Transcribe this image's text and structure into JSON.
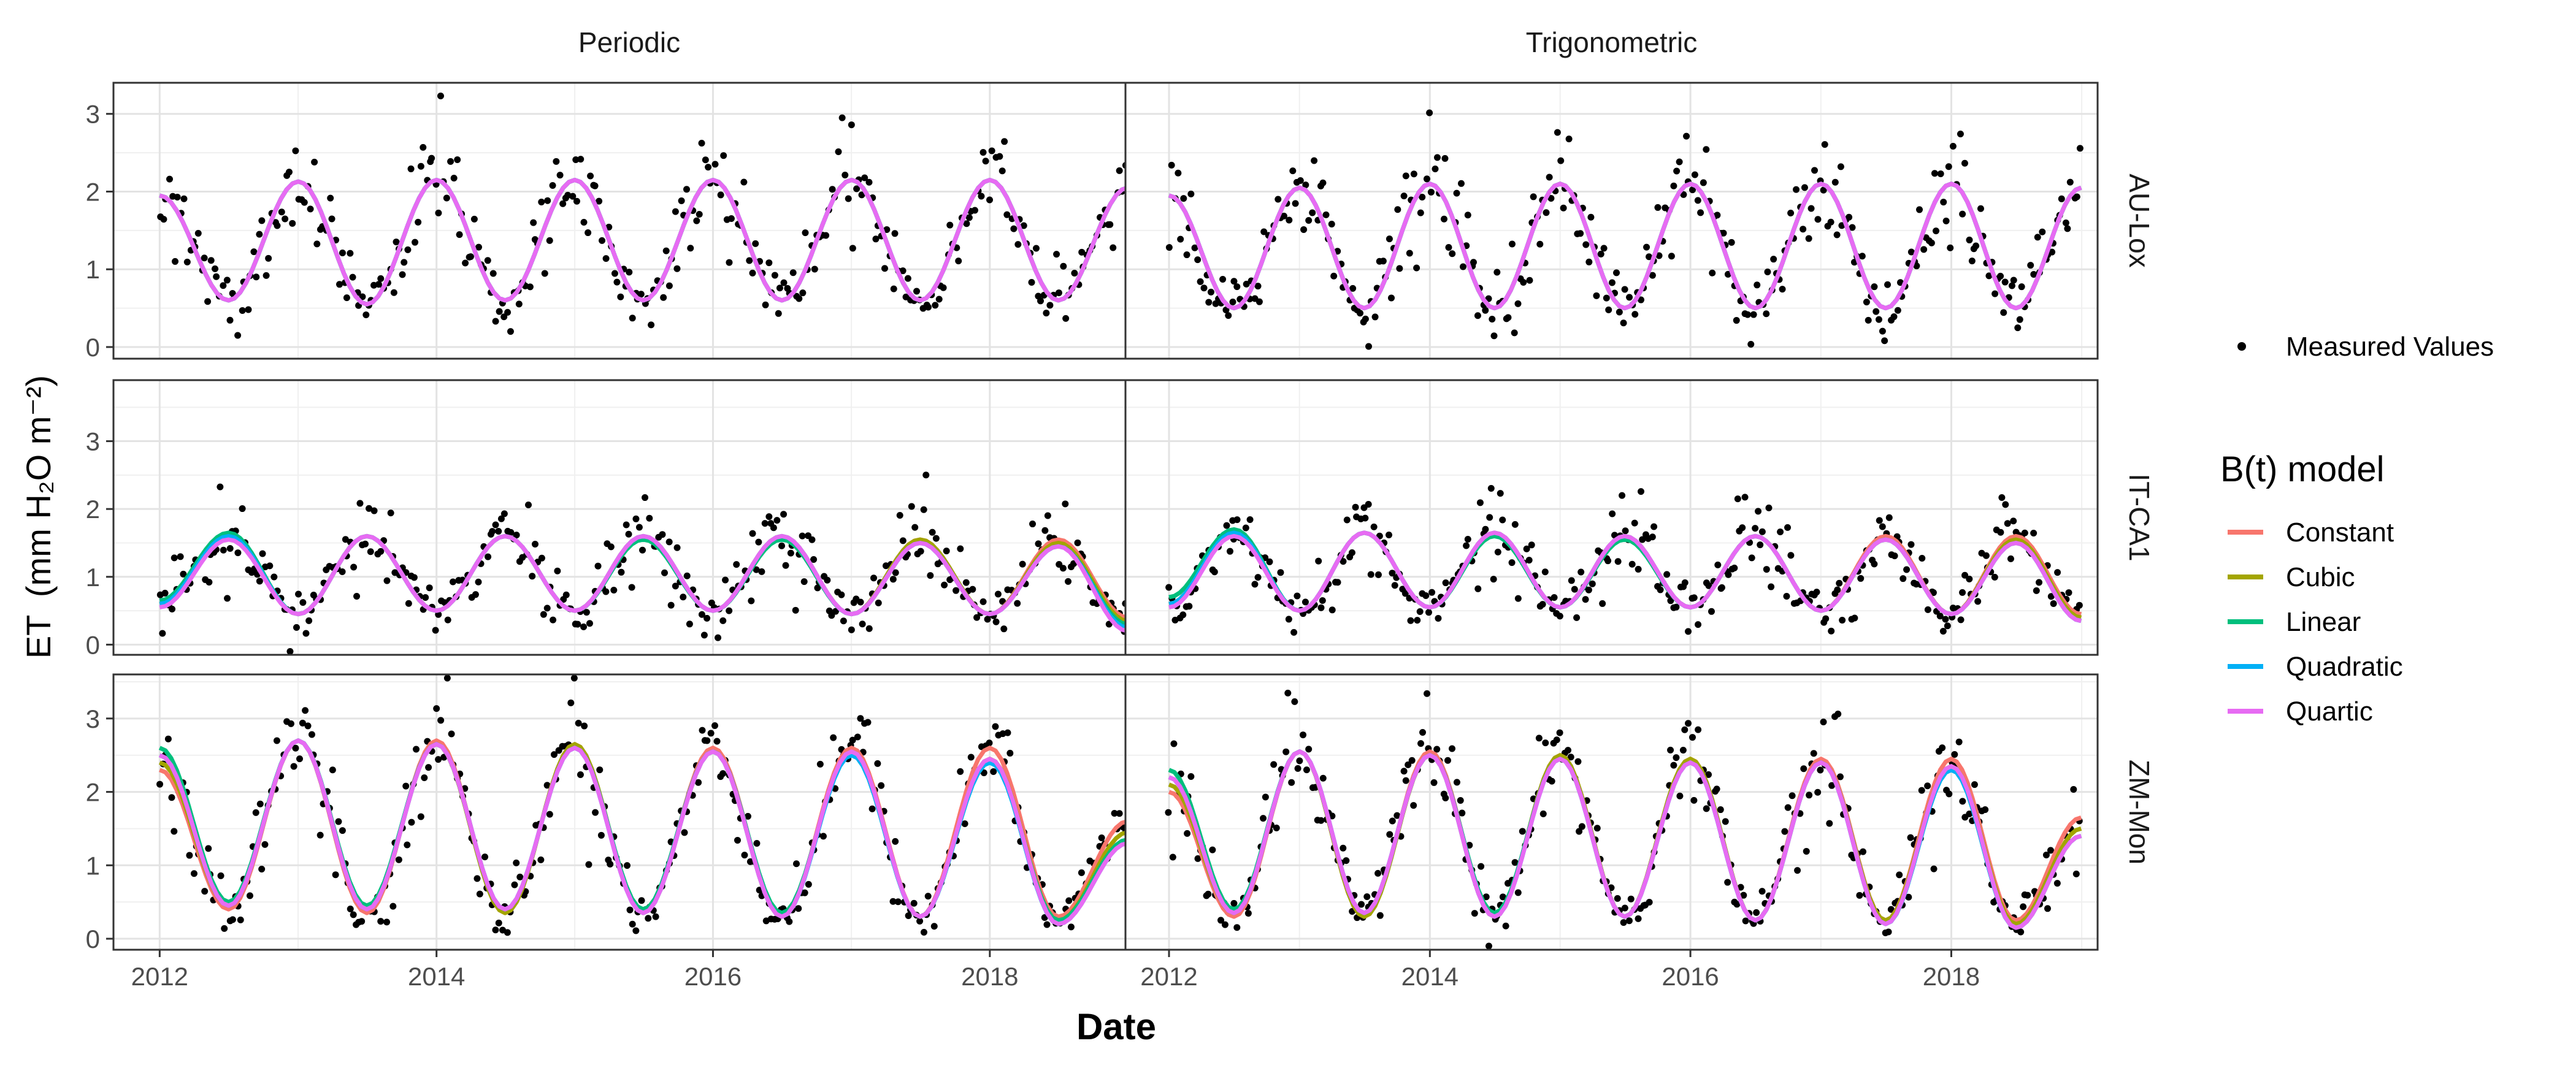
{
  "figure": {
    "ylabel_prefix": "ET",
    "ylabel_unit": "(mm  H₂O  m⁻²)",
    "xlabel": "Date"
  },
  "legend": {
    "points_label": "Measured Values",
    "title": "B(t) model",
    "items": [
      {
        "label": "Constant",
        "color": "#F8766D"
      },
      {
        "label": "Cubic",
        "color": "#A3A500"
      },
      {
        "label": "Linear",
        "color": "#00BF7D"
      },
      {
        "label": "Quadratic",
        "color": "#00B0F6"
      },
      {
        "label": "Quartic",
        "color": "#E76BF3"
      }
    ]
  },
  "chart_data": {
    "type": "line",
    "facets": {
      "columns": [
        "Periodic",
        "Trigonometric"
      ],
      "rows": [
        "AU-Lox",
        "IT-CA1",
        "ZM-Mon"
      ]
    },
    "xlabel": "Date",
    "ylabel": "ET (mm H2O m-2)",
    "x_ticks": [
      "2012",
      "2014",
      "2016",
      "2018"
    ],
    "x_range": [
      "2011-09-01",
      "2019-02-15"
    ],
    "y_ranges": {
      "AU-Lox": [
        -0.15,
        3.4
      ],
      "IT-CA1": [
        -0.15,
        3.9
      ],
      "ZM-Mon": [
        -0.15,
        3.6
      ]
    },
    "y_ticks": {
      "AU-Lox": [
        0,
        1,
        2,
        3
      ],
      "IT-CA1": [
        0,
        1,
        2,
        3
      ],
      "ZM-Mon": [
        0,
        1,
        2,
        3
      ]
    },
    "grid": true,
    "legend_position": "right",
    "points_series": "Measured Values",
    "points_color": "#000000",
    "model_curves": {
      "x": [
        "2012-01-01",
        "2012-07-01",
        "2013-01-01",
        "2013-07-01",
        "2014-01-01",
        "2014-07-01",
        "2015-01-01",
        "2015-07-01",
        "2016-01-01",
        "2016-07-01",
        "2017-01-01",
        "2017-07-01",
        "2018-01-01",
        "2018-07-01",
        "2018-12-31"
      ],
      "AU-Lox": {
        "Periodic": [
          {
            "name": "Constant",
            "values": [
              1.95,
              0.6,
              2.13,
              0.55,
              2.15,
              0.6,
              2.15,
              0.6,
              2.15,
              0.6,
              2.15,
              0.6,
              2.15,
              0.6,
              2.05
            ]
          },
          {
            "name": "Cubic",
            "values": [
              1.95,
              0.6,
              2.13,
              0.55,
              2.15,
              0.6,
              2.15,
              0.6,
              2.15,
              0.6,
              2.15,
              0.6,
              2.15,
              0.6,
              2.05
            ]
          },
          {
            "name": "Linear",
            "values": [
              1.95,
              0.6,
              2.13,
              0.55,
              2.15,
              0.6,
              2.15,
              0.6,
              2.15,
              0.6,
              2.15,
              0.6,
              2.15,
              0.6,
              2.05
            ]
          },
          {
            "name": "Quadratic",
            "values": [
              1.95,
              0.6,
              2.13,
              0.55,
              2.15,
              0.6,
              2.15,
              0.6,
              2.15,
              0.6,
              2.15,
              0.6,
              2.15,
              0.6,
              2.05
            ]
          },
          {
            "name": "Quartic",
            "values": [
              1.95,
              0.6,
              2.13,
              0.55,
              2.15,
              0.6,
              2.15,
              0.6,
              2.15,
              0.6,
              2.15,
              0.6,
              2.15,
              0.6,
              2.05
            ]
          }
        ],
        "Trigonometric": [
          {
            "name": "Constant",
            "values": [
              1.95,
              0.5,
              2.05,
              0.5,
              2.1,
              0.5,
              2.1,
              0.5,
              2.1,
              0.5,
              2.1,
              0.5,
              2.1,
              0.5,
              2.05
            ]
          },
          {
            "name": "Cubic",
            "values": [
              1.95,
              0.5,
              2.05,
              0.5,
              2.1,
              0.5,
              2.1,
              0.5,
              2.1,
              0.5,
              2.1,
              0.5,
              2.1,
              0.5,
              2.05
            ]
          },
          {
            "name": "Linear",
            "values": [
              1.95,
              0.5,
              2.05,
              0.5,
              2.1,
              0.5,
              2.1,
              0.5,
              2.1,
              0.5,
              2.1,
              0.5,
              2.1,
              0.5,
              2.05
            ]
          },
          {
            "name": "Quadratic",
            "values": [
              1.95,
              0.5,
              2.05,
              0.5,
              2.1,
              0.5,
              2.1,
              0.5,
              2.1,
              0.5,
              2.1,
              0.5,
              2.1,
              0.5,
              2.05
            ]
          },
          {
            "name": "Quartic",
            "values": [
              1.95,
              0.5,
              2.05,
              0.5,
              2.1,
              0.5,
              2.1,
              0.5,
              2.1,
              0.5,
              2.1,
              0.5,
              2.1,
              0.5,
              2.05
            ]
          }
        ]
      },
      "IT-CA1": {
        "Periodic": [
          {
            "name": "Constant",
            "values": [
              0.6,
              1.6,
              0.45,
              1.6,
              0.5,
              1.6,
              0.5,
              1.6,
              0.5,
              1.6,
              0.45,
              1.55,
              0.45,
              1.55,
              0.4
            ]
          },
          {
            "name": "Cubic",
            "values": [
              0.6,
              1.6,
              0.45,
              1.6,
              0.5,
              1.6,
              0.5,
              1.6,
              0.5,
              1.6,
              0.45,
              1.55,
              0.45,
              1.5,
              0.35
            ]
          },
          {
            "name": "Linear",
            "values": [
              0.65,
              1.65,
              0.45,
              1.6,
              0.5,
              1.6,
              0.5,
              1.55,
              0.5,
              1.55,
              0.45,
              1.5,
              0.45,
              1.45,
              0.3
            ]
          },
          {
            "name": "Quadratic",
            "values": [
              0.6,
              1.6,
              0.45,
              1.6,
              0.5,
              1.6,
              0.5,
              1.6,
              0.5,
              1.6,
              0.45,
              1.5,
              0.45,
              1.45,
              0.25
            ]
          },
          {
            "name": "Quartic",
            "values": [
              0.55,
              1.55,
              0.45,
              1.6,
              0.5,
              1.6,
              0.5,
              1.6,
              0.5,
              1.6,
              0.45,
              1.5,
              0.45,
              1.45,
              0.2
            ]
          }
        ],
        "Trigonometric": [
          {
            "name": "Constant",
            "values": [
              0.6,
              1.65,
              0.5,
              1.65,
              0.55,
              1.65,
              0.55,
              1.6,
              0.55,
              1.6,
              0.5,
              1.6,
              0.45,
              1.6,
              0.45
            ]
          },
          {
            "name": "Cubic",
            "values": [
              0.6,
              1.65,
              0.5,
              1.65,
              0.55,
              1.65,
              0.55,
              1.6,
              0.55,
              1.6,
              0.5,
              1.55,
              0.45,
              1.55,
              0.4
            ]
          },
          {
            "name": "Linear",
            "values": [
              0.7,
              1.7,
              0.5,
              1.65,
              0.55,
              1.6,
              0.55,
              1.55,
              0.55,
              1.6,
              0.5,
              1.55,
              0.45,
              1.5,
              0.35
            ]
          },
          {
            "name": "Quadratic",
            "values": [
              0.6,
              1.65,
              0.5,
              1.65,
              0.55,
              1.65,
              0.55,
              1.6,
              0.55,
              1.6,
              0.5,
              1.55,
              0.45,
              1.5,
              0.35
            ]
          },
          {
            "name": "Quartic",
            "values": [
              0.55,
              1.6,
              0.5,
              1.65,
              0.55,
              1.65,
              0.55,
              1.6,
              0.55,
              1.6,
              0.5,
              1.55,
              0.45,
              1.5,
              0.35
            ]
          }
        ]
      },
      "ZM-Mon": {
        "Periodic": [
          {
            "name": "Constant",
            "values": [
              2.3,
              0.4,
              2.7,
              0.35,
              2.7,
              0.35,
              2.65,
              0.35,
              2.6,
              0.3,
              2.6,
              0.3,
              2.6,
              0.3,
              1.6
            ]
          },
          {
            "name": "Cubic",
            "values": [
              2.4,
              0.45,
              2.7,
              0.4,
              2.65,
              0.35,
              2.65,
              0.35,
              2.55,
              0.3,
              2.55,
              0.3,
              2.45,
              0.25,
              1.45
            ]
          },
          {
            "name": "Linear",
            "values": [
              2.6,
              0.5,
              2.7,
              0.45,
              2.65,
              0.4,
              2.6,
              0.4,
              2.55,
              0.35,
              2.5,
              0.3,
              2.4,
              0.25,
              1.35
            ]
          },
          {
            "name": "Quadratic",
            "values": [
              2.5,
              0.45,
              2.7,
              0.4,
              2.65,
              0.4,
              2.6,
              0.35,
              2.55,
              0.3,
              2.5,
              0.3,
              2.4,
              0.2,
              1.3
            ]
          },
          {
            "name": "Quartic",
            "values": [
              2.5,
              0.45,
              2.7,
              0.4,
              2.65,
              0.4,
              2.6,
              0.35,
              2.55,
              0.3,
              2.55,
              0.3,
              2.45,
              0.2,
              1.3
            ]
          }
        ],
        "Trigonometric": [
          {
            "name": "Constant",
            "values": [
              2.0,
              0.3,
              2.55,
              0.3,
              2.55,
              0.3,
              2.5,
              0.3,
              2.45,
              0.25,
              2.45,
              0.25,
              2.45,
              0.25,
              1.65
            ]
          },
          {
            "name": "Cubic",
            "values": [
              2.1,
              0.35,
              2.55,
              0.3,
              2.5,
              0.3,
              2.5,
              0.3,
              2.45,
              0.25,
              2.4,
              0.25,
              2.35,
              0.2,
              1.5
            ]
          },
          {
            "name": "Linear",
            "values": [
              2.3,
              0.4,
              2.55,
              0.35,
              2.5,
              0.35,
              2.45,
              0.3,
              2.4,
              0.25,
              2.4,
              0.2,
              2.3,
              0.15,
              1.4
            ]
          },
          {
            "name": "Quadratic",
            "values": [
              2.2,
              0.35,
              2.55,
              0.35,
              2.5,
              0.3,
              2.45,
              0.3,
              2.4,
              0.25,
              2.4,
              0.2,
              2.3,
              0.15,
              1.4
            ]
          },
          {
            "name": "Quartic",
            "values": [
              2.2,
              0.35,
              2.55,
              0.35,
              2.5,
              0.3,
              2.45,
              0.3,
              2.4,
              0.25,
              2.4,
              0.2,
              2.35,
              0.15,
              1.4
            ]
          }
        ]
      }
    }
  }
}
